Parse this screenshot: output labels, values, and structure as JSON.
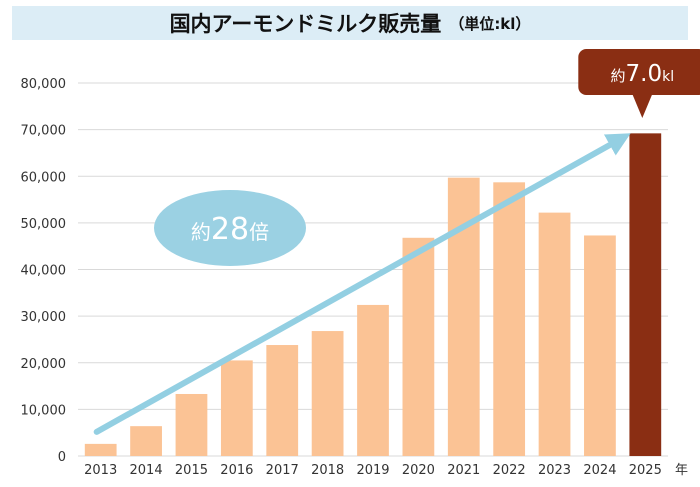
{
  "title": "国内アーモンドミルク販売量",
  "unit": "（単位:kl）",
  "chart_data": {
    "type": "bar",
    "categories": [
      "2013",
      "2014",
      "2015",
      "2016",
      "2017",
      "2018",
      "2019",
      "2020",
      "2021",
      "2022",
      "2023",
      "2024",
      "2025"
    ],
    "values": [
      2600,
      6400,
      13300,
      20500,
      23800,
      26800,
      32400,
      46800,
      59700,
      58700,
      52200,
      47300,
      69200
    ],
    "ylim": [
      0,
      80000
    ],
    "yticks": [
      0,
      10000,
      20000,
      30000,
      40000,
      50000,
      60000,
      70000,
      80000
    ],
    "ytick_labels": [
      "0",
      "10,000",
      "20,000",
      "30,000",
      "40,000",
      "50,000",
      "60,000",
      "70,000",
      "80,000"
    ],
    "x_axis_suffix": "年",
    "grid": true,
    "colors": {
      "bar": "#fbc395",
      "highlight_bar": "#8a2e13",
      "arrow": "#93cfe2",
      "ellipse": "#9bd1e3",
      "title_bg": "#dcedf6"
    },
    "annotations": {
      "growth": {
        "prefix": "約",
        "value": "28",
        "suffix": "倍"
      },
      "highlight": {
        "prefix": "約",
        "value": "7.0",
        "suffix": "kl",
        "category": "2025"
      }
    }
  }
}
